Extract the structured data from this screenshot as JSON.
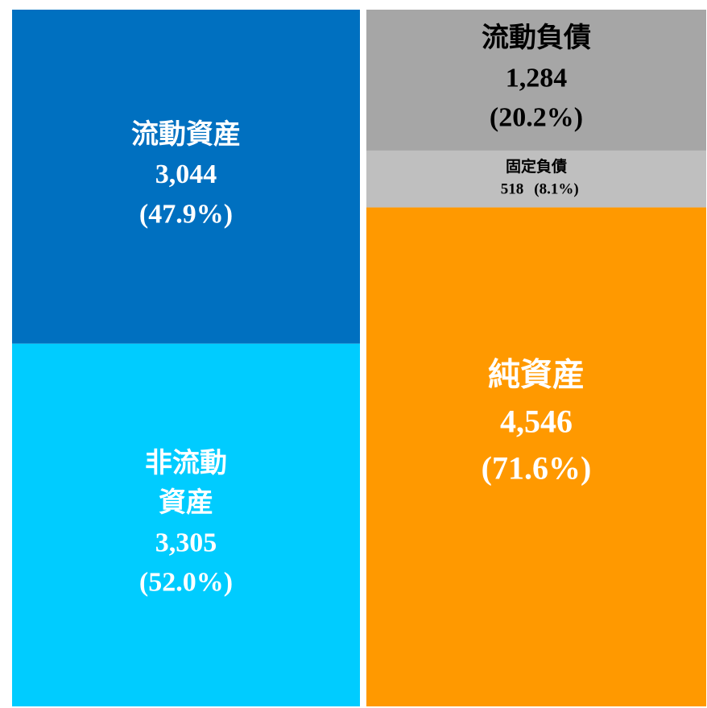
{
  "chart_data": {
    "type": "balance_sheet",
    "columns": [
      {
        "segments": [
          {
            "name": "流動資産",
            "value": 3044,
            "value_label": "3,044",
            "share": 47.9,
            "share_label": "(47.9%)",
            "color": "#0070c0",
            "text_color": "#ffffff"
          },
          {
            "name": "非流動資産",
            "value": 3305,
            "value_label": "3,305",
            "share": 52.0,
            "share_label": "(52.0%)",
            "color": "#00ccff",
            "text_color": "#ffffff"
          }
        ]
      },
      {
        "segments": [
          {
            "name": "流動負債",
            "value": 1284,
            "value_label": "1,284",
            "share": 20.2,
            "share_label": "(20.2%)",
            "color": "#a6a6a6",
            "text_color": "#000000"
          },
          {
            "name": "固定負債",
            "value": 518,
            "value_label": "518",
            "share": 8.1,
            "share_label": "(8.1%)",
            "color": "#bfbfbf",
            "text_color": "#000000"
          },
          {
            "name": "純資産",
            "value": 4546,
            "value_label": "4,546",
            "share": 71.6,
            "share_label": "(71.6%)",
            "color": "#ff9900",
            "text_color": "#ffffff"
          }
        ]
      }
    ]
  }
}
